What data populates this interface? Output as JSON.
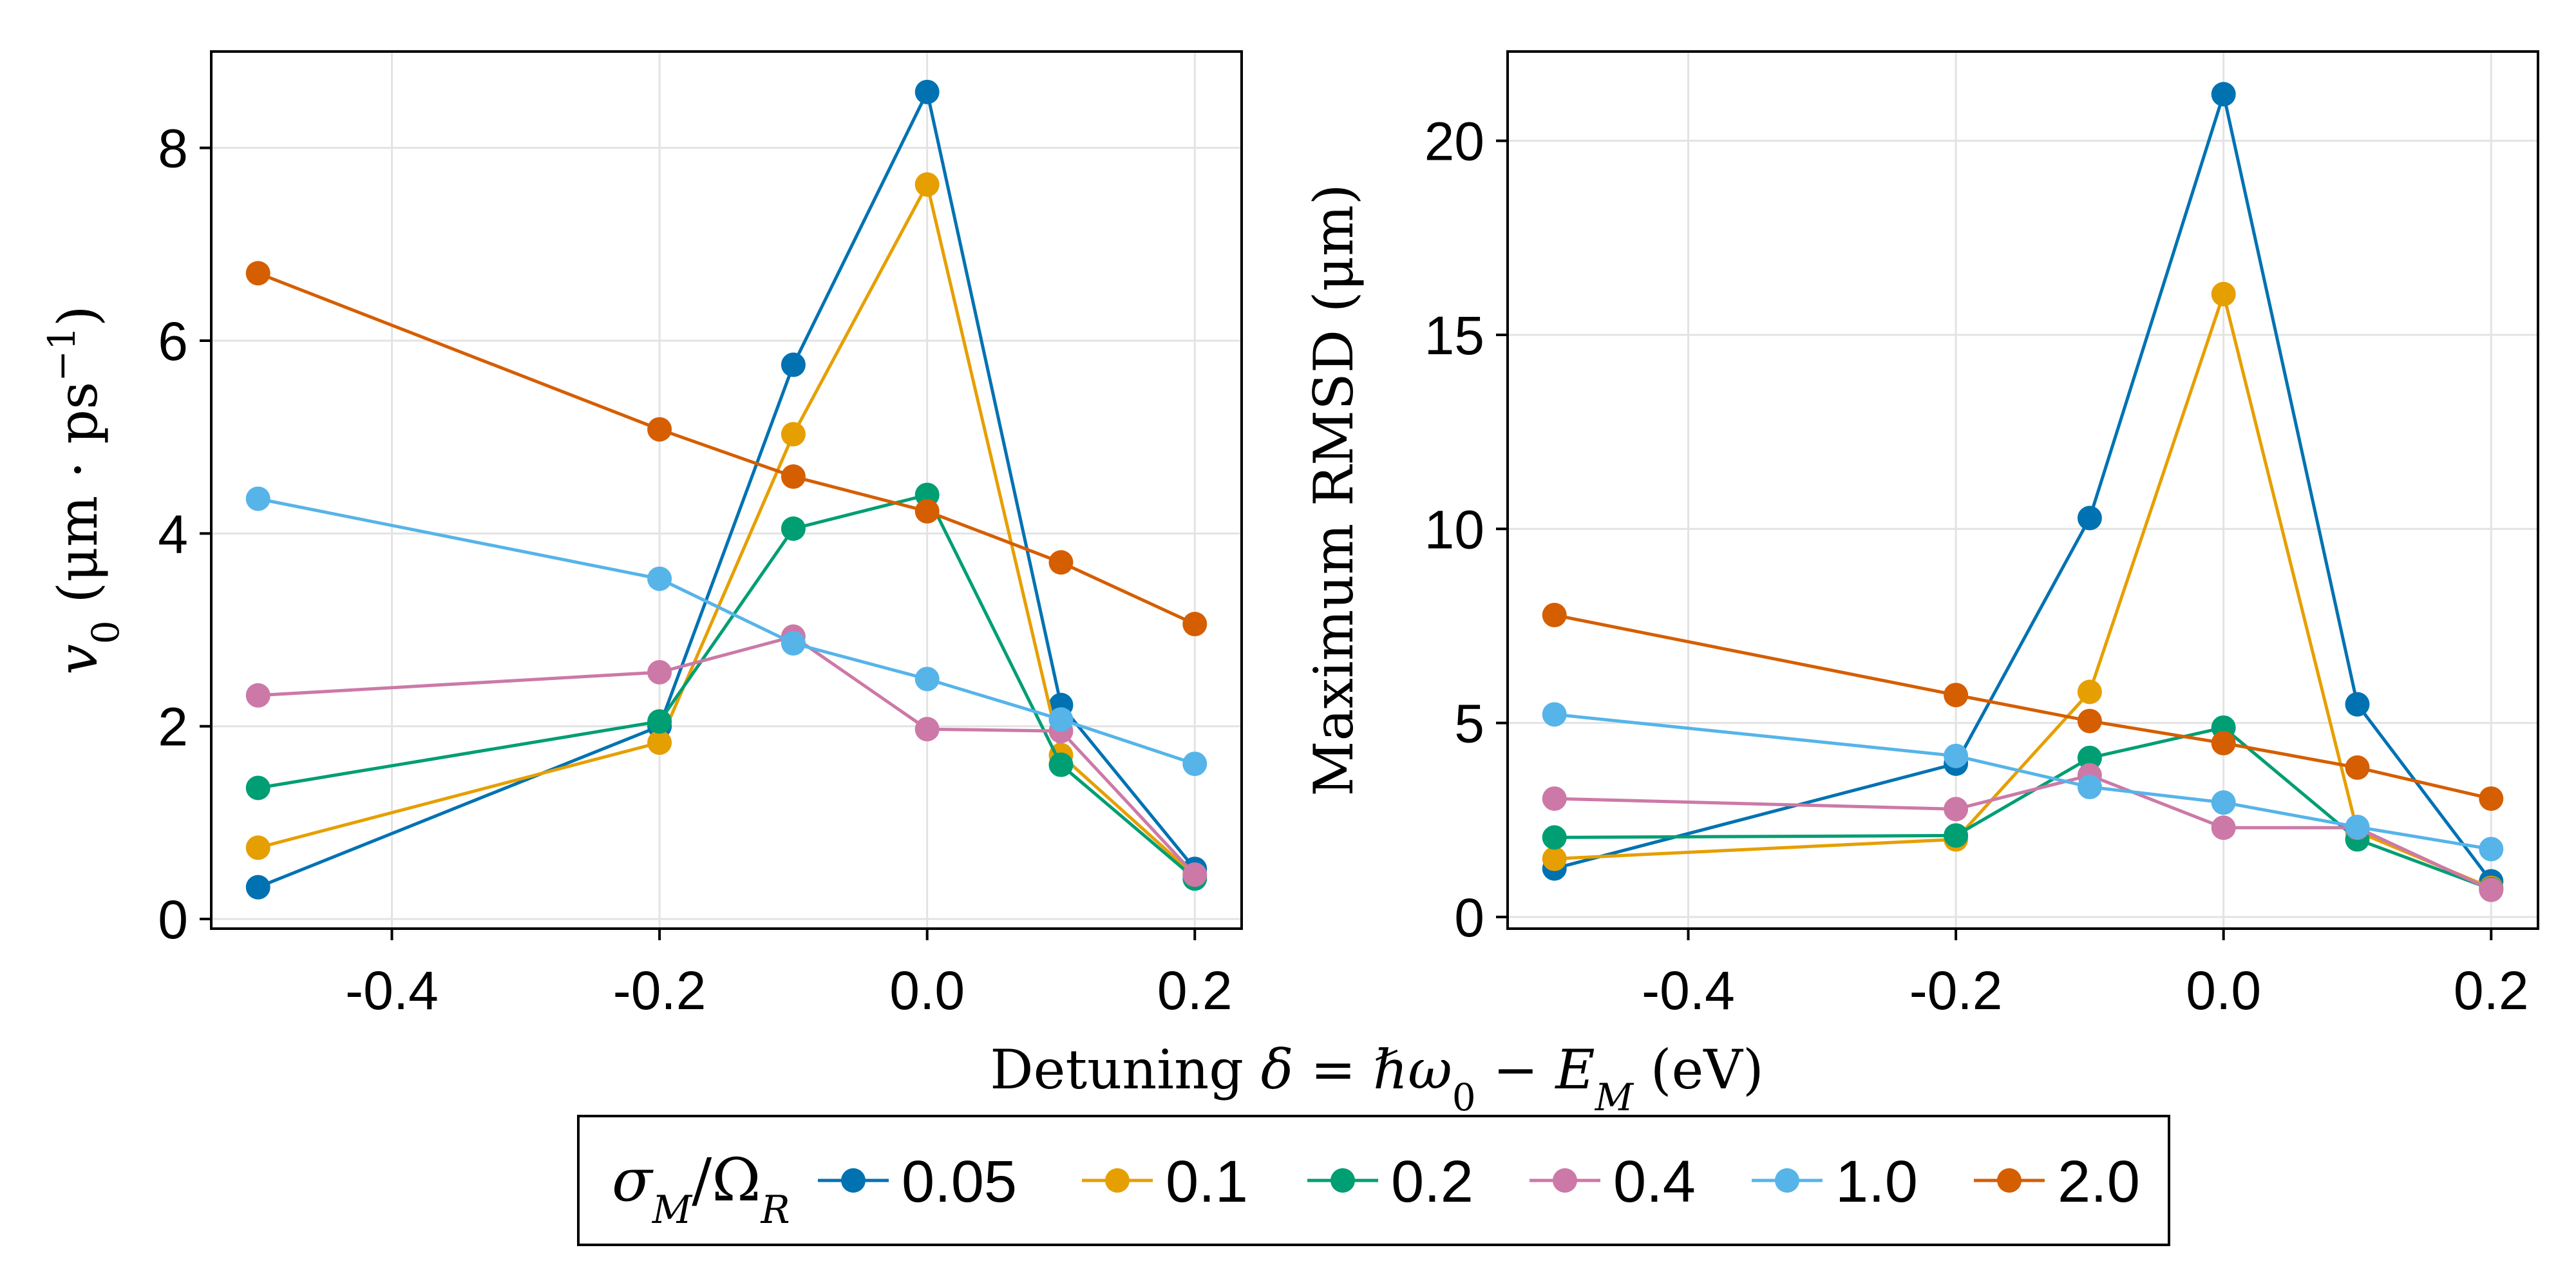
{
  "chart_data": [
    {
      "type": "line",
      "panel": "left",
      "ylabel_parts": [
        "v",
        "0",
        " (μm · ps",
        "−1",
        ")"
      ],
      "x": [
        -0.5,
        -0.2,
        -0.1,
        0.0,
        0.1,
        0.2
      ],
      "xticks": [
        -0.4,
        -0.2,
        0.0,
        0.2
      ],
      "xtick_labels": [
        "-0.4",
        "-0.2",
        "0.0",
        "0.2"
      ],
      "yticks": [
        0,
        2,
        4,
        6,
        8
      ],
      "ytick_labels": [
        "0",
        "2",
        "4",
        "6",
        "8"
      ],
      "xlim": [
        -0.535,
        0.235
      ],
      "ylim": [
        -0.1,
        9.0
      ],
      "grid": true,
      "series": [
        {
          "name": "0.05",
          "color": "#0072B2",
          "values": [
            0.33,
            2.0,
            5.75,
            8.58,
            2.22,
            0.52
          ]
        },
        {
          "name": "0.1",
          "color": "#E69F00",
          "values": [
            0.74,
            1.83,
            5.03,
            7.62,
            1.7,
            0.45
          ]
        },
        {
          "name": "0.2",
          "color": "#009E73",
          "values": [
            1.36,
            2.05,
            4.05,
            4.4,
            1.6,
            0.42
          ]
        },
        {
          "name": "0.4",
          "color": "#CC79A7",
          "values": [
            2.32,
            2.56,
            2.93,
            1.97,
            1.95,
            0.46
          ]
        },
        {
          "name": "1.0",
          "color": "#56B4E9",
          "values": [
            4.36,
            3.53,
            2.86,
            2.49,
            2.07,
            1.61
          ]
        },
        {
          "name": "2.0",
          "color": "#D55E00",
          "values": [
            6.7,
            5.08,
            4.59,
            4.23,
            3.7,
            3.06
          ]
        }
      ]
    },
    {
      "type": "line",
      "panel": "right",
      "ylabel_parts": [
        "Maximum RMSD (μm)"
      ],
      "x": [
        -0.5,
        -0.2,
        -0.1,
        0.0,
        0.1,
        0.2
      ],
      "xticks": [
        -0.4,
        -0.2,
        0.0,
        0.2
      ],
      "xtick_labels": [
        "-0.4",
        "-0.2",
        "0.0",
        "0.2"
      ],
      "yticks": [
        0,
        5,
        10,
        15,
        20
      ],
      "ytick_labels": [
        "0",
        "5",
        "10",
        "15",
        "20"
      ],
      "xlim": [
        -0.535,
        0.235
      ],
      "ylim": [
        -0.3,
        22.3
      ],
      "grid": true,
      "series": [
        {
          "name": "0.05",
          "color": "#0072B2",
          "values": [
            1.25,
            3.95,
            10.28,
            21.2,
            5.48,
            0.92
          ]
        },
        {
          "name": "0.1",
          "color": "#E69F00",
          "values": [
            1.5,
            2.0,
            5.8,
            16.05,
            2.2,
            0.75
          ]
        },
        {
          "name": "0.2",
          "color": "#009E73",
          "values": [
            2.05,
            2.1,
            4.1,
            4.88,
            2.0,
            0.72
          ]
        },
        {
          "name": "0.4",
          "color": "#CC79A7",
          "values": [
            3.05,
            2.78,
            3.65,
            2.3,
            2.3,
            0.7
          ]
        },
        {
          "name": "1.0",
          "color": "#56B4E9",
          "values": [
            5.22,
            4.15,
            3.35,
            2.95,
            2.32,
            1.75
          ]
        },
        {
          "name": "2.0",
          "color": "#D55E00",
          "values": [
            7.78,
            5.72,
            5.05,
            4.48,
            3.85,
            3.05
          ]
        }
      ]
    }
  ],
  "xlabel": {
    "prefix": "Detuning ",
    "formula": "δ = ℏω",
    "sub1": "0",
    "minus": " − E",
    "sub2": "M",
    "unit": " (eV)"
  },
  "legend": {
    "title": {
      "main": "σ",
      "sub1": "M",
      "slash": "/Ω",
      "sub2": "R"
    },
    "placement": "bottom-center",
    "entries": [
      "0.05",
      "0.1",
      "0.2",
      "0.4",
      "1.0",
      "2.0"
    ]
  }
}
